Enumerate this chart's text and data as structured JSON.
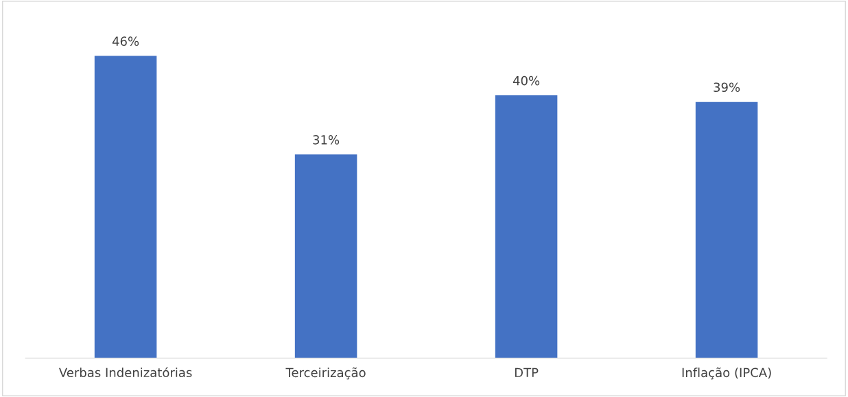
{
  "chart_data": {
    "type": "bar",
    "categories": [
      "Verbas Indenizatórias",
      "Terceirização",
      "DTP",
      "Inflação (IPCA)"
    ],
    "values": [
      46,
      31,
      40,
      39
    ],
    "value_labels": [
      "46%",
      "31%",
      "40%",
      "39%"
    ],
    "color": "#4472c4",
    "grid": false,
    "legend": false
  }
}
